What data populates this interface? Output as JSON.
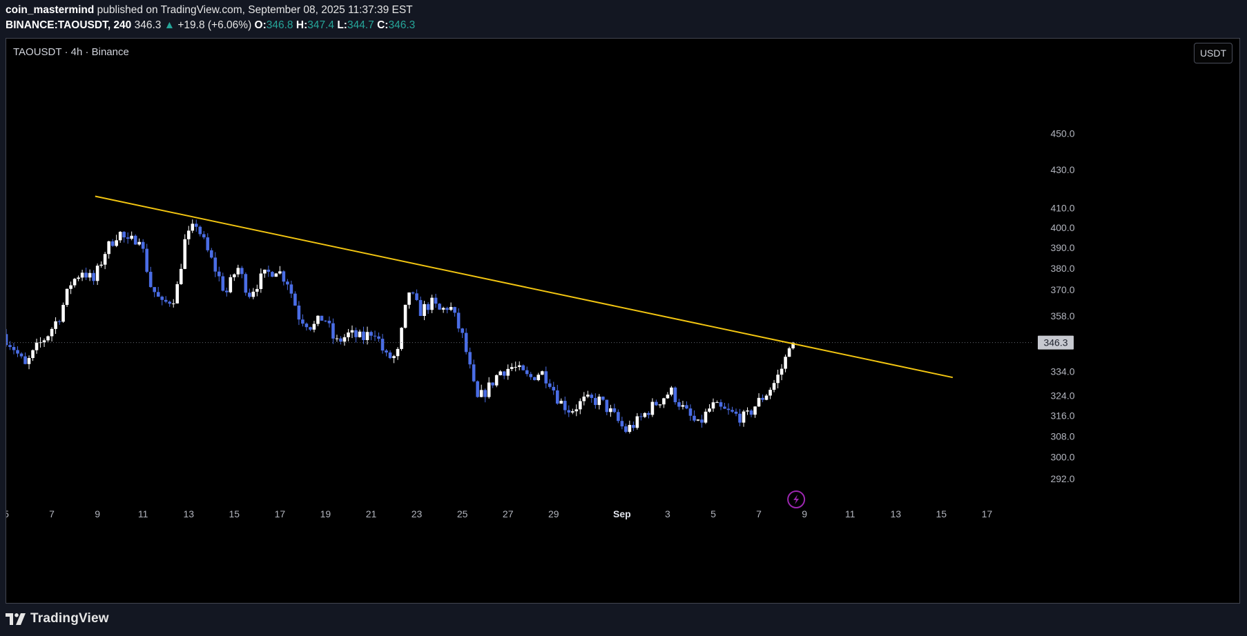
{
  "header": {
    "publisher": "coin_mastermind",
    "published_text": "published on TradingView.com, September 08, 2025 11:37:39 EST",
    "symbol_full": "BINANCE:TAOUSDT, 240",
    "last": "346.3",
    "change": "+19.8 (+6.06%)",
    "ohlc": [
      {
        "label": "O:",
        "value": "346.8"
      },
      {
        "label": "H:",
        "value": "347.4"
      },
      {
        "label": "L:",
        "value": "344.7"
      },
      {
        "label": "C:",
        "value": "346.3"
      }
    ]
  },
  "legend": {
    "title": "TAOUSDT · 4h · Binance"
  },
  "currency_button": {
    "label": "USDT"
  },
  "footer": {
    "brand": "TradingView"
  },
  "colors": {
    "up_candle": "#ffffff",
    "down_candle": "#4a6de5",
    "trendline": "#f2c511",
    "change_up": "#26a69a",
    "background": "#000000",
    "event_icon": "#9c27b0"
  },
  "chart_data": {
    "type": "candlestick",
    "title": "TAOUSDT · 4h · Binance",
    "timeframe": "4h",
    "y_scale": "log",
    "ylim": [
      286,
      475
    ],
    "y_ticks": [
      "450.0",
      "430.0",
      "410.0",
      "400.0",
      "390.0",
      "380.0",
      "370.0",
      "358.0",
      "334.0",
      "324.0",
      "316.0",
      "308.0",
      "300.0",
      "292.0"
    ],
    "x_ticks": [
      "5",
      "7",
      "9",
      "11",
      "13",
      "15",
      "17",
      "19",
      "21",
      "23",
      "25",
      "27",
      "29",
      "Sep",
      "3",
      "5",
      "7",
      "9",
      "11",
      "13",
      "15",
      "17"
    ],
    "x_tick_days": [
      5,
      7,
      9,
      11,
      13,
      15,
      17,
      19,
      21,
      23,
      25,
      27,
      29,
      32,
      34,
      36,
      38,
      40,
      42,
      44,
      46,
      48
    ],
    "x_range_days": [
      5,
      49.2
    ],
    "last_price": "346.3",
    "path": [
      {
        "day": 5.0,
        "price": 350
      },
      {
        "day": 5.5,
        "price": 344
      },
      {
        "day": 6.0,
        "price": 336
      },
      {
        "day": 6.5,
        "price": 344
      },
      {
        "day": 7.0,
        "price": 350
      },
      {
        "day": 7.5,
        "price": 358
      },
      {
        "day": 8.0,
        "price": 373
      },
      {
        "day": 8.5,
        "price": 379
      },
      {
        "day": 9.0,
        "price": 374
      },
      {
        "day": 9.5,
        "price": 388
      },
      {
        "day": 10.1,
        "price": 398
      },
      {
        "day": 10.5,
        "price": 392
      },
      {
        "day": 11.0,
        "price": 396
      },
      {
        "day": 11.5,
        "price": 372
      },
      {
        "day": 12.0,
        "price": 363
      },
      {
        "day": 12.6,
        "price": 367
      },
      {
        "day": 13.0,
        "price": 393
      },
      {
        "day": 13.5,
        "price": 402
      },
      {
        "day": 14.0,
        "price": 388
      },
      {
        "day": 14.4,
        "price": 378
      },
      {
        "day": 14.8,
        "price": 368
      },
      {
        "day": 15.3,
        "price": 381
      },
      {
        "day": 15.8,
        "price": 368
      },
      {
        "day": 16.4,
        "price": 376
      },
      {
        "day": 17.0,
        "price": 380
      },
      {
        "day": 17.5,
        "price": 374
      },
      {
        "day": 18.0,
        "price": 358
      },
      {
        "day": 18.6,
        "price": 353
      },
      {
        "day": 19.1,
        "price": 358
      },
      {
        "day": 19.6,
        "price": 346
      },
      {
        "day": 20.2,
        "price": 350
      },
      {
        "day": 20.8,
        "price": 348
      },
      {
        "day": 21.3,
        "price": 352
      },
      {
        "day": 21.8,
        "price": 340
      },
      {
        "day": 22.3,
        "price": 340
      },
      {
        "day": 22.6,
        "price": 356
      },
      {
        "day": 22.8,
        "price": 370
      },
      {
        "day": 23.3,
        "price": 360
      },
      {
        "day": 23.8,
        "price": 364
      },
      {
        "day": 24.2,
        "price": 360
      },
      {
        "day": 24.6,
        "price": 363
      },
      {
        "day": 25.2,
        "price": 348
      },
      {
        "day": 25.8,
        "price": 322
      },
      {
        "day": 26.3,
        "price": 327
      },
      {
        "day": 26.8,
        "price": 334
      },
      {
        "day": 27.4,
        "price": 336
      },
      {
        "day": 28.1,
        "price": 331
      },
      {
        "day": 28.6,
        "price": 334
      },
      {
        "day": 29.0,
        "price": 330
      },
      {
        "day": 29.4,
        "price": 322
      },
      {
        "day": 29.9,
        "price": 318
      },
      {
        "day": 30.5,
        "price": 322
      },
      {
        "day": 31.2,
        "price": 322
      },
      {
        "day": 31.8,
        "price": 316
      },
      {
        "day": 32.3,
        "price": 310
      },
      {
        "day": 32.9,
        "price": 314
      },
      {
        "day": 33.3,
        "price": 318
      },
      {
        "day": 33.8,
        "price": 322
      },
      {
        "day": 34.3,
        "price": 326
      },
      {
        "day": 34.9,
        "price": 318
      },
      {
        "day": 35.5,
        "price": 312
      },
      {
        "day": 36.1,
        "price": 320
      },
      {
        "day": 36.6,
        "price": 318
      },
      {
        "day": 37.2,
        "price": 316
      },
      {
        "day": 37.6,
        "price": 315
      },
      {
        "day": 38.0,
        "price": 320
      },
      {
        "day": 38.5,
        "price": 325
      },
      {
        "day": 38.9,
        "price": 330
      },
      {
        "day": 39.3,
        "price": 338
      },
      {
        "day": 39.5,
        "price": 346.3
      }
    ]
  },
  "annotations": {
    "trendline": [
      {
        "day": 8.9,
        "price": 416
      },
      {
        "day": 46.5,
        "price": 331.5
      }
    ]
  }
}
